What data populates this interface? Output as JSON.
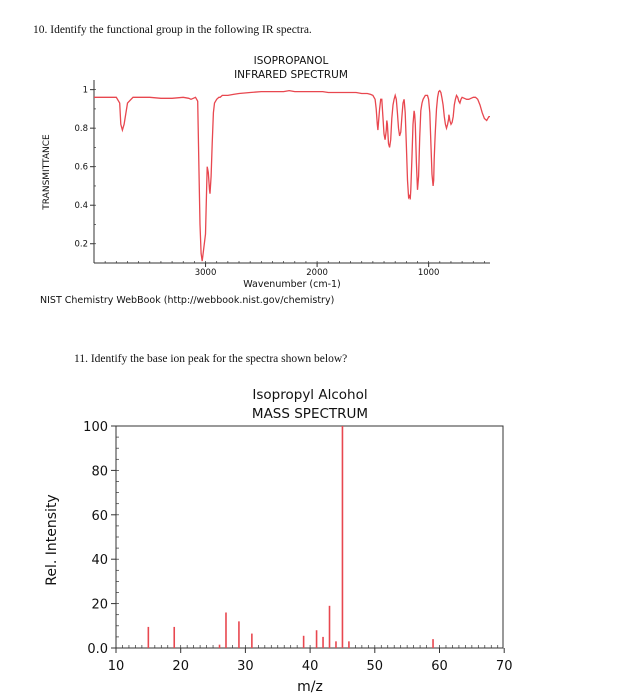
{
  "questions": {
    "q10": "10. Identify the functional group in the following IR spectra.",
    "q11": "11. Identify the base ion peak for the spectra shown below?"
  },
  "source_note": "NIST Chemistry WebBook (http://webbook.nist.gov/chemistry)",
  "colors": {
    "trace": "#e8474f",
    "axis": "#333333"
  },
  "chart_data": [
    {
      "type": "line",
      "title": "ISOPROPANOL",
      "subtitle": "INFRARED SPECTRUM",
      "xlabel": "Wavenumber (cm-1)",
      "ylabel": "TRANSMITTANCE",
      "xlim": [
        4000,
        450
      ],
      "ylim": [
        0.1,
        1.05
      ],
      "x_reversed": true,
      "grid": false,
      "xticks": [
        3000,
        2000,
        1000
      ],
      "yticks": [
        0.2,
        0.4,
        0.6,
        0.8,
        1
      ],
      "ytick_labels": [
        "0.2",
        "0.4",
        "0.6",
        "0.8",
        "1"
      ],
      "series": [
        {
          "x": [
            4000,
            3950,
            3900,
            3850,
            3800,
            3770,
            3760,
            3745,
            3730,
            3700,
            3650,
            3600,
            3500,
            3400,
            3300,
            3200,
            3150,
            3130,
            3110,
            3090,
            3070,
            3060,
            3050,
            3040,
            3030,
            3000,
            2990,
            2985,
            2975,
            2965,
            2960,
            2950,
            2940,
            2930,
            2920,
            2900,
            2880,
            2870,
            2860,
            2850,
            2800,
            2750,
            2700,
            2600,
            2500,
            2400,
            2300,
            2250,
            2200,
            2100,
            2000,
            1950,
            1900,
            1800,
            1700,
            1650,
            1600,
            1550,
            1520,
            1500,
            1480,
            1470,
            1460,
            1455,
            1450,
            1440,
            1430,
            1420,
            1410,
            1400,
            1390,
            1380,
            1375,
            1370,
            1360,
            1350,
            1340,
            1330,
            1320,
            1310,
            1300,
            1290,
            1280,
            1270,
            1260,
            1250,
            1240,
            1230,
            1220,
            1210,
            1200,
            1190,
            1180,
            1170,
            1165,
            1160,
            1150,
            1140,
            1130,
            1125,
            1120,
            1110,
            1100,
            1090,
            1080,
            1070,
            1060,
            1050,
            1040,
            1030,
            1020,
            1010,
            1000,
            990,
            980,
            970,
            960,
            955,
            950,
            945,
            940,
            930,
            920,
            910,
            900,
            890,
            880,
            870,
            860,
            850,
            840,
            830,
            820,
            818,
            815,
            810,
            800,
            790,
            780,
            770,
            760,
            750,
            740,
            730,
            720,
            710,
            700,
            680,
            660,
            640,
            620,
            600,
            580,
            560,
            540,
            520,
            500,
            480,
            460,
            450
          ],
          "y": [
            0.96,
            0.96,
            0.96,
            0.96,
            0.96,
            0.93,
            0.82,
            0.79,
            0.82,
            0.93,
            0.96,
            0.96,
            0.96,
            0.955,
            0.955,
            0.96,
            0.955,
            0.95,
            0.955,
            0.96,
            0.94,
            0.6,
            0.3,
            0.15,
            0.11,
            0.25,
            0.5,
            0.6,
            0.57,
            0.48,
            0.46,
            0.55,
            0.72,
            0.88,
            0.93,
            0.95,
            0.96,
            0.96,
            0.965,
            0.97,
            0.97,
            0.975,
            0.98,
            0.985,
            0.99,
            0.99,
            0.99,
            0.995,
            0.99,
            0.99,
            0.99,
            0.99,
            0.985,
            0.985,
            0.985,
            0.985,
            0.98,
            0.98,
            0.975,
            0.97,
            0.95,
            0.9,
            0.82,
            0.79,
            0.83,
            0.9,
            0.95,
            0.95,
            0.86,
            0.77,
            0.74,
            0.79,
            0.84,
            0.82,
            0.72,
            0.7,
            0.74,
            0.85,
            0.92,
            0.95,
            0.97,
            0.95,
            0.88,
            0.8,
            0.76,
            0.78,
            0.86,
            0.93,
            0.95,
            0.88,
            0.72,
            0.53,
            0.44,
            0.45,
            0.43,
            0.48,
            0.64,
            0.82,
            0.89,
            0.87,
            0.82,
            0.62,
            0.48,
            0.55,
            0.75,
            0.89,
            0.93,
            0.95,
            0.96,
            0.97,
            0.97,
            0.97,
            0.95,
            0.88,
            0.72,
            0.56,
            0.5,
            0.53,
            0.64,
            0.72,
            0.78,
            0.9,
            0.96,
            0.99,
            0.995,
            0.985,
            0.955,
            0.92,
            0.86,
            0.82,
            0.8,
            0.82,
            0.85,
            0.87,
            0.86,
            0.84,
            0.82,
            0.83,
            0.86,
            0.92,
            0.95,
            0.97,
            0.96,
            0.94,
            0.93,
            0.95,
            0.96,
            0.955,
            0.95,
            0.95,
            0.955,
            0.96,
            0.96,
            0.95,
            0.92,
            0.88,
            0.85,
            0.84,
            0.86,
            0.86
          ]
        }
      ]
    },
    {
      "type": "bar",
      "title": "Isopropyl Alcohol",
      "subtitle": "MASS SPECTRUM",
      "xlabel": "m/z",
      "ylabel": "Rel. Intensity",
      "xlim": [
        10,
        62
      ],
      "ylim": [
        0,
        100
      ],
      "grid": false,
      "xticks": [
        10,
        20,
        30,
        40,
        50,
        60,
        70
      ],
      "yticks": [
        0,
        20,
        40,
        60,
        80,
        100
      ],
      "ytick_labels": [
        "0.0",
        "20",
        "40",
        "60",
        "80",
        "100"
      ],
      "x": [
        15,
        19,
        26,
        27,
        29,
        31,
        39,
        41,
        42,
        43,
        44,
        45,
        46,
        59
      ],
      "values": [
        9.5,
        9.5,
        1.5,
        16,
        12,
        6.5,
        5.5,
        8,
        5,
        19,
        3,
        100,
        3,
        4
      ]
    }
  ]
}
